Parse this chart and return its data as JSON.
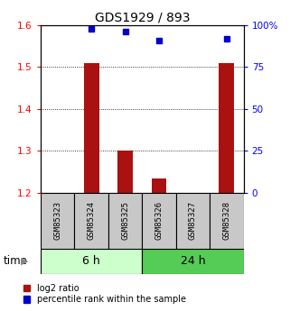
{
  "title": "GDS1929 / 893",
  "samples": [
    "GSM85323",
    "GSM85324",
    "GSM85325",
    "GSM85326",
    "GSM85327",
    "GSM85328"
  ],
  "log2_ratio": [
    null,
    1.51,
    1.3,
    1.235,
    null,
    1.51
  ],
  "percentile_rank": [
    null,
    97.5,
    96.0,
    90.5,
    null,
    92.0
  ],
  "ylim_left": [
    1.2,
    1.6
  ],
  "ylim_right": [
    0,
    100
  ],
  "yticks_left": [
    1.2,
    1.3,
    1.4,
    1.5,
    1.6
  ],
  "yticks_right": [
    0,
    25,
    50,
    75,
    100
  ],
  "ytick_labels_right": [
    "0",
    "25",
    "50",
    "75",
    "100%"
  ],
  "group1_label": "6 h",
  "group2_label": "24 h",
  "group1_indices": [
    0,
    1,
    2
  ],
  "group2_indices": [
    3,
    4,
    5
  ],
  "group1_color_light": "#ccffcc",
  "group2_color": "#55cc55",
  "bar_color": "#aa1111",
  "dot_color": "#0000cc",
  "bar_width": 0.45,
  "time_label": "time",
  "legend1_label": "log2 ratio",
  "legend2_label": "percentile rank within the sample",
  "background_color": "#ffffff",
  "gray": "#c8c8c8"
}
